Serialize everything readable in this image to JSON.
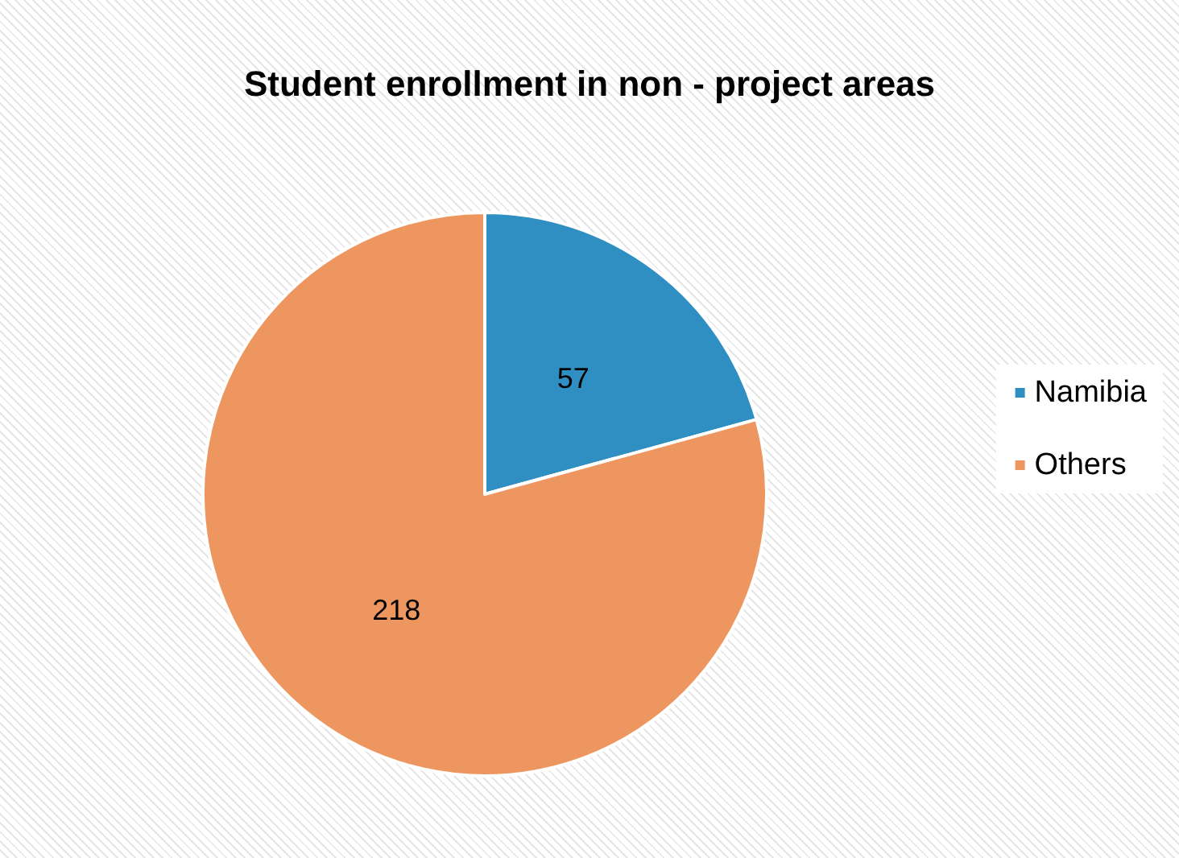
{
  "chart_data": {
    "type": "pie",
    "title": "Student enrollment in non - project areas",
    "categories": [
      "Namibia",
      "Others"
    ],
    "values": [
      57,
      218
    ],
    "colors": [
      "#2f8fc2",
      "#ee9660"
    ],
    "data_labels": true,
    "legend": "right"
  }
}
